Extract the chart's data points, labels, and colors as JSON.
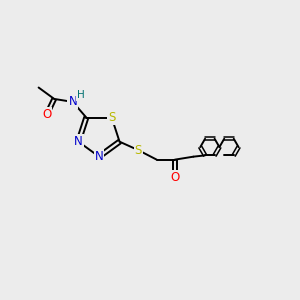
{
  "bg_color": "#ececec",
  "bond_color": "#000000",
  "atom_colors": {
    "N": "#0000cc",
    "S": "#b8b800",
    "O": "#ff0000",
    "H": "#007070",
    "C": "#000000"
  },
  "bond_width": 1.4,
  "figsize": [
    3.0,
    3.0
  ],
  "dpi": 100,
  "xlim": [
    0,
    10
  ],
  "ylim": [
    0,
    10
  ]
}
